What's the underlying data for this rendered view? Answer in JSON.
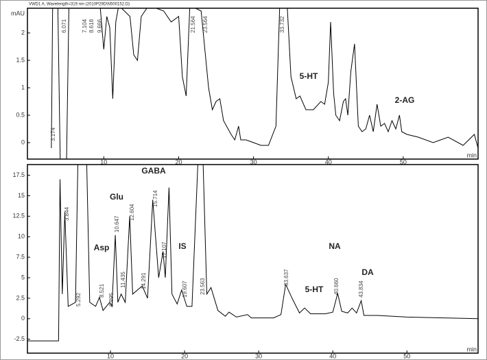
{
  "header": "VWD1 A, Wavelength=319 nm (2010P29D\\N500152.D)",
  "chart_data": [
    {
      "type": "line",
      "y_unit": "mAU",
      "x_unit": "min",
      "color": "#000000",
      "xlim": [
        -0.2,
        60
      ],
      "ylim": [
        -0.3,
        2.45
      ],
      "xticks": [
        10,
        20,
        30,
        40,
        50
      ],
      "yticks": [
        0,
        0.5,
        1,
        1.5,
        2
      ],
      "x": [
        3,
        3.2,
        3.8,
        4.2,
        5,
        5.4,
        9.5,
        10,
        10.4,
        10.8,
        11.2,
        11.6,
        12,
        13.5,
        14,
        14.5,
        15,
        16,
        18,
        19,
        20,
        20.5,
        21,
        21.5,
        23,
        24,
        24.5,
        25,
        25.5,
        26,
        27,
        27.5,
        28,
        28.3,
        29,
        30,
        31,
        32,
        33,
        33.5,
        34.5,
        35,
        35.7,
        36.2,
        37,
        38,
        39,
        39.5,
        40,
        40.3,
        40.7,
        41,
        41.5,
        42,
        42.3,
        42.6,
        43,
        43.5,
        44,
        44.5,
        45,
        45.5,
        46,
        46.5,
        47,
        47.5,
        48,
        48.5,
        49,
        49.5,
        49.8,
        50.5,
        52,
        54,
        56,
        58,
        59.5,
        60
      ],
      "values": [
        -0.1,
        3,
        3,
        -0.5,
        -0.5,
        3,
        2.5,
        1.7,
        2.3,
        2.1,
        0.8,
        2.2,
        2.5,
        2.3,
        1.6,
        1.5,
        2.3,
        2.5,
        2.4,
        2.2,
        2.3,
        1.2,
        0.85,
        2.5,
        2.4,
        1.0,
        0.6,
        0.75,
        0.8,
        0.4,
        0.15,
        0.05,
        0.3,
        0.05,
        0.05,
        0.0,
        -0.05,
        -0.05,
        0.3,
        2.5,
        2.5,
        1.2,
        0.8,
        0.85,
        0.6,
        0.6,
        0.75,
        0.7,
        1.1,
        2.2,
        0.9,
        0.5,
        0.4,
        0.75,
        0.8,
        0.5,
        1.3,
        1.8,
        0.3,
        0.2,
        0.25,
        0.5,
        0.2,
        0.7,
        0.3,
        0.35,
        0.2,
        0.4,
        0.25,
        0.5,
        0.2,
        0.15,
        0.1,
        0.0,
        0.1,
        -0.05,
        0.15,
        -0.1
      ],
      "annotations": [
        "5-HT",
        "2-AG"
      ],
      "peak_labels": [
        "3.174",
        "6.071",
        "7.104",
        "8.618",
        "9.666",
        "21.564",
        "23.564",
        "33.732"
      ]
    },
    {
      "type": "line",
      "x_unit": "min",
      "color": "#000000",
      "xlim": [
        -1.2,
        59.6
      ],
      "ylim": [
        -4.2,
        18.8
      ],
      "xticks": [
        10,
        20,
        30,
        40,
        50
      ],
      "yticks": [
        -2.5,
        0,
        2.5,
        5,
        7.5,
        10,
        12.5,
        15,
        17.5
      ],
      "x": [
        -1.2,
        3,
        3.2,
        3.5,
        3.84,
        4.3,
        5.29,
        5.6,
        6.8,
        7.2,
        8,
        8.52,
        9,
        9.9,
        10.2,
        10.65,
        11,
        11.44,
        12,
        12.6,
        13,
        14.29,
        15,
        15.71,
        16.5,
        17.1,
        17.4,
        17.9,
        18.3,
        19,
        19.6,
        20.3,
        21,
        21.8,
        22.5,
        23,
        23.56,
        24.5,
        25.5,
        26,
        27,
        28.5,
        29,
        32,
        33,
        33.64,
        34.5,
        35.5,
        36.2,
        37,
        39,
        40,
        40.66,
        41.2,
        42,
        42.6,
        43.2,
        43.83,
        44.2,
        46,
        50,
        55,
        59.6
      ],
      "values": [
        -2.7,
        -2.7,
        17,
        3,
        13,
        1.5,
        2,
        19,
        19,
        2,
        1.5,
        2.6,
        1,
        2,
        1.5,
        10.2,
        2,
        3,
        2,
        12.5,
        3,
        4,
        2.5,
        14.5,
        5,
        8.2,
        5,
        16,
        3,
        1.8,
        3.5,
        1.5,
        1.5,
        19,
        19,
        3,
        3.8,
        1,
        0.3,
        0.8,
        0.2,
        0.5,
        0.1,
        0.1,
        0.5,
        4.2,
        2.5,
        0.7,
        1.3,
        0.6,
        0.6,
        0.8,
        3.1,
        0.9,
        0.7,
        1.3,
        0.7,
        2.2,
        0.4,
        0.4,
        0.2,
        0.1,
        0.0
      ],
      "annotations": [
        "Asp",
        "Glu",
        "GABA",
        "IS",
        "5-HT",
        "NA",
        "DA"
      ],
      "peak_labels": [
        "3.844",
        "5.292",
        "8.521",
        "9.895",
        "10.647",
        "11.435",
        "12.604",
        "14.291",
        "15.714",
        "17.107",
        "19.607",
        "23.563",
        "33.637",
        "40.660",
        "43.834"
      ]
    }
  ]
}
